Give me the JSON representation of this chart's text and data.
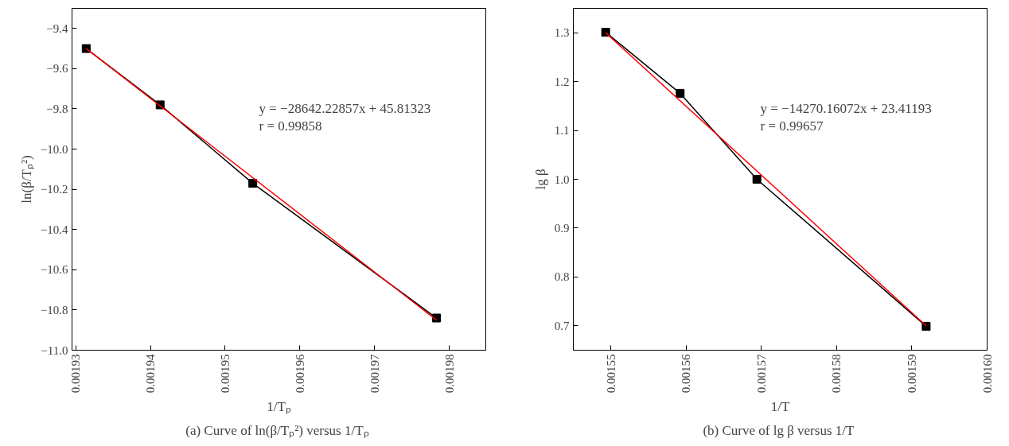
{
  "chart_data": [
    {
      "type": "line",
      "title": "(a)  Curve of ln(β/Tₚ²) versus 1/Tₚ",
      "xlabel": "1/Tₚ",
      "ylabel": "ln(β/Tₚ²)",
      "annotations": [
        "y = −28642.22857x + 45.81323",
        "r = 0.99858"
      ],
      "series": [
        {
          "color": "#000000",
          "marker": "square",
          "x": [
            0.0019314,
            0.0019413,
            0.0019537,
            0.0019783
          ],
          "values": [
            -9.5,
            -9.78,
            -10.17,
            -10.84
          ]
        },
        {
          "color": "#ff0000",
          "marker": "none",
          "x": [
            0.0019314,
            0.0019783
          ],
          "values": [
            -9.5,
            -10.85
          ]
        }
      ],
      "xlim": [
        0.0019295,
        0.0019849
      ],
      "xticks": [
        0.00193,
        0.00194,
        0.00195,
        0.00196,
        0.00197,
        0.00198
      ],
      "ylim": [
        -11.0,
        -9.3
      ],
      "yticks": [
        {
          "value": -11.0,
          "label": "−11.0"
        },
        {
          "value": -10.8,
          "label": "−10.8"
        },
        {
          "value": -10.6,
          "label": "−10.6"
        },
        {
          "value": -10.4,
          "label": "−10.4"
        },
        {
          "value": -10.2,
          "label": "−10.2"
        },
        {
          "value": -10.0,
          "label": "−10.0"
        },
        {
          "value": -9.8,
          "label": "−9.8"
        },
        {
          "value": -9.6,
          "label": "−9.6"
        },
        {
          "value": -9.4,
          "label": "−9.4"
        }
      ],
      "grid": false,
      "line_style": "solid"
    },
    {
      "type": "line",
      "title": "(b)  Curve of lg β versus 1/T",
      "xlabel": "1/T",
      "ylabel": "lg β",
      "annotations": [
        "y = −14270.16072x + 23.41193",
        "r = 0.99657"
      ],
      "series": [
        {
          "color": "#000000",
          "marker": "square",
          "x": [
            0.0015493,
            0.0015592,
            0.0015694,
            0.0015919
          ],
          "values": [
            1.301,
            1.176,
            1.0,
            0.699
          ]
        },
        {
          "color": "#ff0000",
          "marker": "none",
          "x": [
            0.0015493,
            0.0015919
          ],
          "values": [
            1.3,
            0.7
          ]
        }
      ],
      "xlim": [
        0.001545,
        0.0016
      ],
      "xticks": [
        {
          "value": 0.00155,
          "label": "0.00155"
        },
        {
          "value": 0.00156,
          "label": "0.00156"
        },
        {
          "value": 0.00157,
          "label": "0.00157"
        },
        {
          "value": 0.00158,
          "label": "0.00158"
        },
        {
          "value": 0.00159,
          "label": "0.00159"
        },
        {
          "value": 0.0016,
          "label": "0.00160"
        }
      ],
      "ylim": [
        0.65,
        1.35
      ],
      "yticks": [
        {
          "value": 0.7,
          "label": "0.7"
        },
        {
          "value": 0.8,
          "label": "0.8"
        },
        {
          "value": 0.9,
          "label": "0.9"
        },
        {
          "value": 1.0,
          "label": "1.0"
        },
        {
          "value": 1.1,
          "label": "1.1"
        },
        {
          "value": 1.2,
          "label": "1.2"
        },
        {
          "value": 1.3,
          "label": "1.3"
        }
      ],
      "grid": false,
      "line_style": "solid"
    }
  ]
}
